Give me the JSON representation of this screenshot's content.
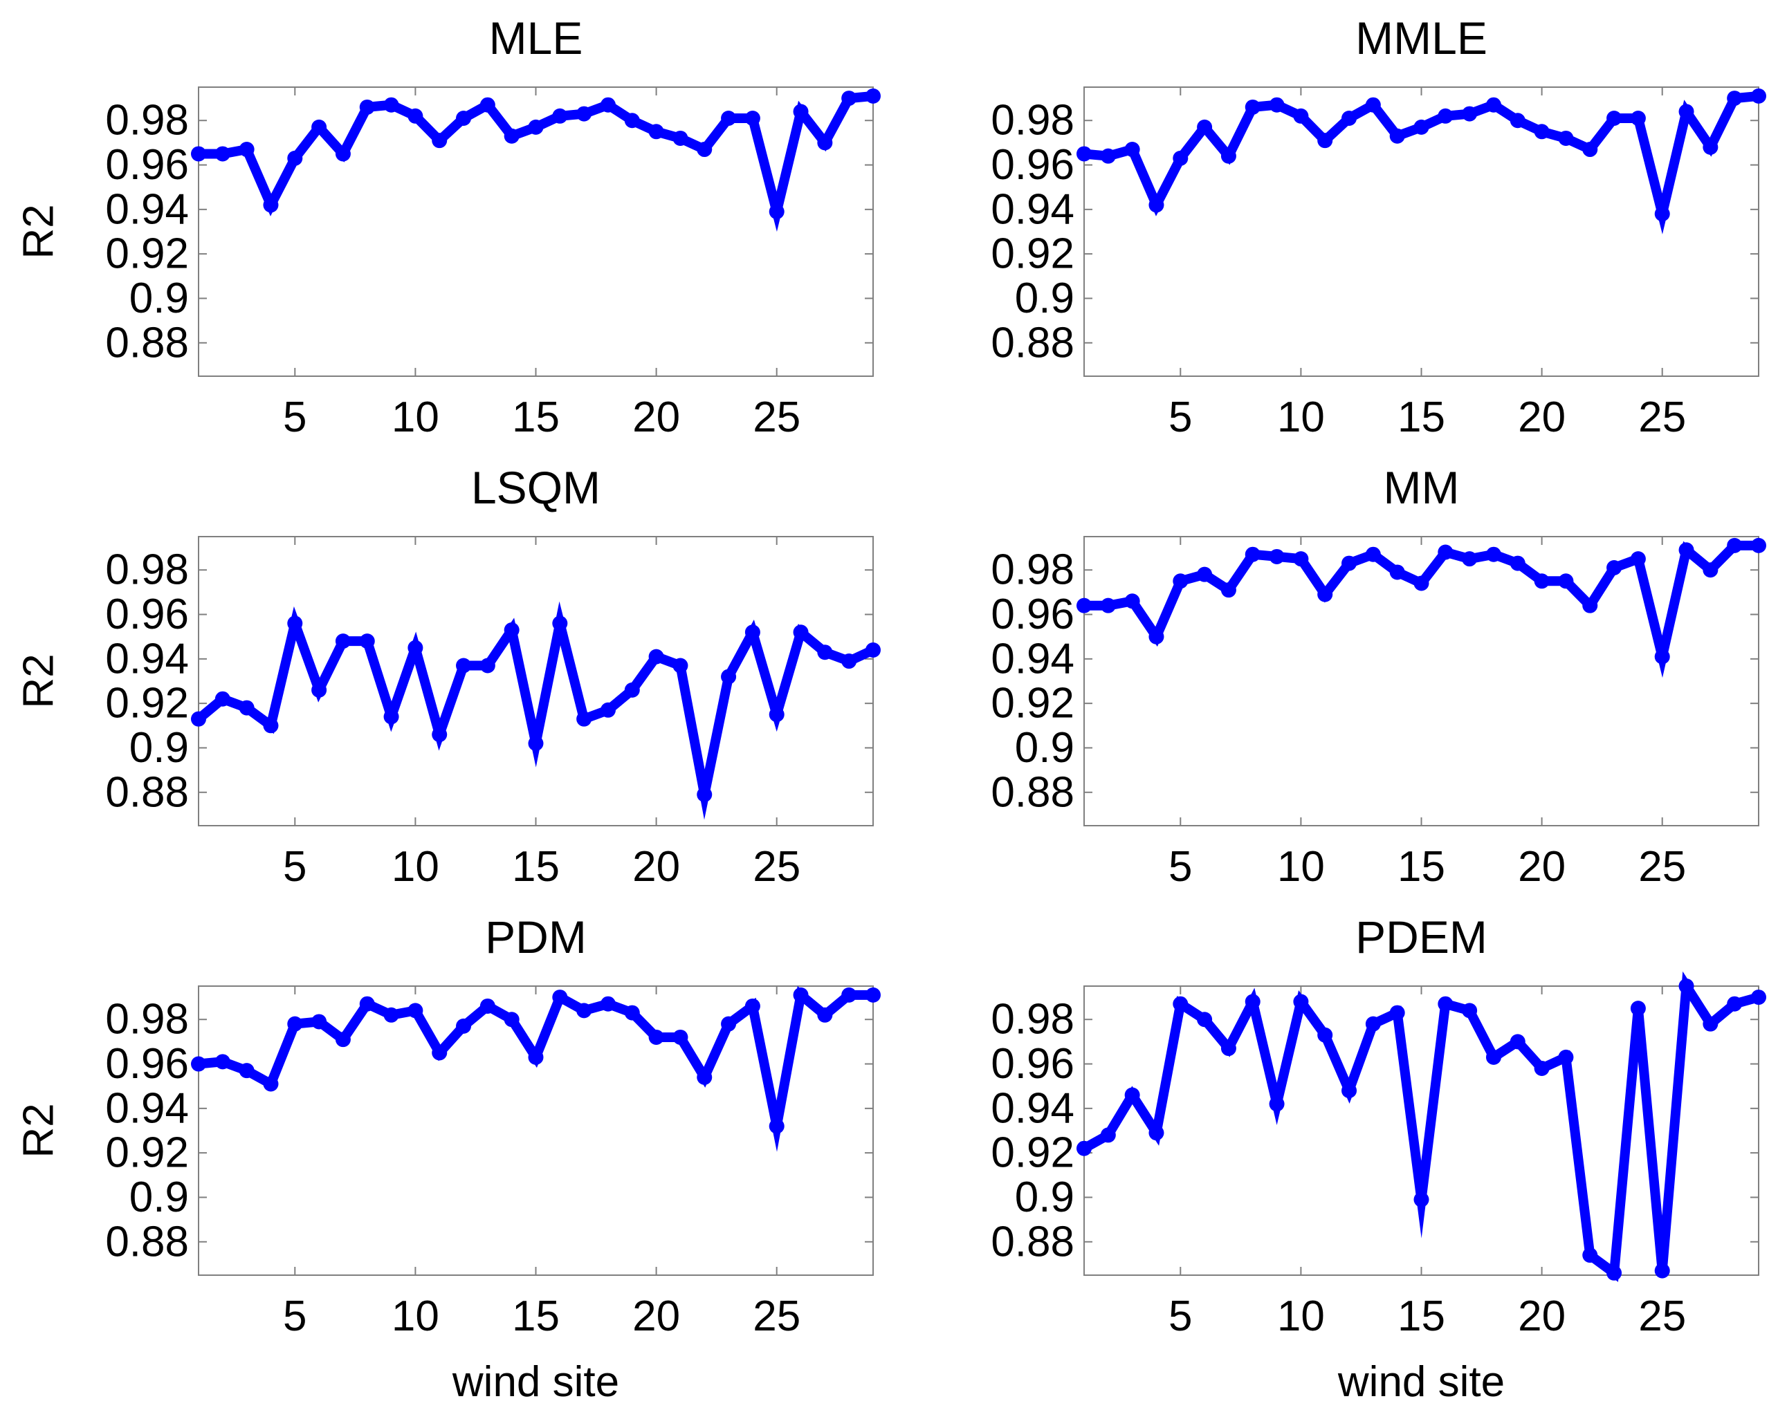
{
  "figure": {
    "xlabel": "wind site",
    "ylabel": "R2"
  },
  "chart_data": [
    {
      "type": "line",
      "title": "MLE",
      "ylabel": "R2",
      "xlabel": "",
      "xlim": [
        1,
        29
      ],
      "ylim": [
        0.865,
        0.995
      ],
      "xticks": [
        5,
        10,
        15,
        20,
        25
      ],
      "yticks": [
        0.88,
        0.9,
        0.92,
        0.94,
        0.96,
        0.98
      ],
      "ytick_labels": [
        "0.88",
        "0.9",
        "0.92",
        "0.94",
        "0.96",
        "0.98"
      ],
      "line_color": "#0000ff",
      "grid": false,
      "x": [
        1,
        2,
        3,
        4,
        5,
        6,
        7,
        8,
        9,
        10,
        11,
        12,
        13,
        14,
        15,
        16,
        17,
        18,
        19,
        20,
        21,
        22,
        23,
        24,
        25,
        26,
        27,
        28,
        29
      ],
      "values": [
        0.965,
        0.965,
        0.967,
        0.942,
        0.963,
        0.977,
        0.965,
        0.986,
        0.987,
        0.982,
        0.971,
        0.981,
        0.987,
        0.973,
        0.977,
        0.982,
        0.983,
        0.987,
        0.98,
        0.975,
        0.972,
        0.967,
        0.981,
        0.981,
        0.939,
        0.984,
        0.97,
        0.99,
        0.991
      ]
    },
    {
      "type": "line",
      "title": "MMLE",
      "ylabel": "",
      "xlabel": "",
      "xlim": [
        1,
        29
      ],
      "ylim": [
        0.865,
        0.995
      ],
      "xticks": [
        5,
        10,
        15,
        20,
        25
      ],
      "yticks": [
        0.88,
        0.9,
        0.92,
        0.94,
        0.96,
        0.98
      ],
      "ytick_labels": [
        "0.88",
        "0.9",
        "0.92",
        "0.94",
        "0.96",
        "0.98"
      ],
      "line_color": "#0000ff",
      "grid": false,
      "x": [
        1,
        2,
        3,
        4,
        5,
        6,
        7,
        8,
        9,
        10,
        11,
        12,
        13,
        14,
        15,
        16,
        17,
        18,
        19,
        20,
        21,
        22,
        23,
        24,
        25,
        26,
        27,
        28,
        29
      ],
      "values": [
        0.965,
        0.964,
        0.967,
        0.942,
        0.963,
        0.977,
        0.964,
        0.986,
        0.987,
        0.982,
        0.971,
        0.981,
        0.987,
        0.973,
        0.977,
        0.982,
        0.983,
        0.987,
        0.98,
        0.975,
        0.972,
        0.967,
        0.981,
        0.981,
        0.938,
        0.984,
        0.968,
        0.99,
        0.991
      ]
    },
    {
      "type": "line",
      "title": "LSQM",
      "ylabel": "R2",
      "xlabel": "",
      "xlim": [
        1,
        29
      ],
      "ylim": [
        0.865,
        0.995
      ],
      "xticks": [
        5,
        10,
        15,
        20,
        25
      ],
      "yticks": [
        0.88,
        0.9,
        0.92,
        0.94,
        0.96,
        0.98
      ],
      "ytick_labels": [
        "0.88",
        "0.9",
        "0.92",
        "0.94",
        "0.96",
        "0.98"
      ],
      "line_color": "#0000ff",
      "grid": false,
      "x": [
        1,
        2,
        3,
        4,
        5,
        6,
        7,
        8,
        9,
        10,
        11,
        12,
        13,
        14,
        15,
        16,
        17,
        18,
        19,
        20,
        21,
        22,
        23,
        24,
        25,
        26,
        27,
        28,
        29
      ],
      "values": [
        0.913,
        0.922,
        0.918,
        0.91,
        0.956,
        0.926,
        0.948,
        0.948,
        0.914,
        0.945,
        0.906,
        0.937,
        0.937,
        0.953,
        0.902,
        0.956,
        0.913,
        0.917,
        0.926,
        0.941,
        0.937,
        0.879,
        0.932,
        0.952,
        0.915,
        0.952,
        0.943,
        0.939,
        0.944
      ]
    },
    {
      "type": "line",
      "title": "MM",
      "ylabel": "",
      "xlabel": "",
      "xlim": [
        1,
        29
      ],
      "ylim": [
        0.865,
        0.995
      ],
      "xticks": [
        5,
        10,
        15,
        20,
        25
      ],
      "yticks": [
        0.88,
        0.9,
        0.92,
        0.94,
        0.96,
        0.98
      ],
      "ytick_labels": [
        "0.88",
        "0.9",
        "0.92",
        "0.94",
        "0.96",
        "0.98"
      ],
      "line_color": "#0000ff",
      "grid": false,
      "x": [
        1,
        2,
        3,
        4,
        5,
        6,
        7,
        8,
        9,
        10,
        11,
        12,
        13,
        14,
        15,
        16,
        17,
        18,
        19,
        20,
        21,
        22,
        23,
        24,
        25,
        26,
        27,
        28,
        29
      ],
      "values": [
        0.964,
        0.964,
        0.966,
        0.95,
        0.975,
        0.978,
        0.971,
        0.987,
        0.986,
        0.985,
        0.969,
        0.983,
        0.987,
        0.979,
        0.974,
        0.988,
        0.985,
        0.987,
        0.983,
        0.975,
        0.975,
        0.964,
        0.981,
        0.985,
        0.941,
        0.989,
        0.98,
        0.991,
        0.991
      ]
    },
    {
      "type": "line",
      "title": "PDM",
      "ylabel": "R2",
      "xlabel": "wind site",
      "xlim": [
        1,
        29
      ],
      "ylim": [
        0.865,
        0.995
      ],
      "xticks": [
        5,
        10,
        15,
        20,
        25
      ],
      "yticks": [
        0.88,
        0.9,
        0.92,
        0.94,
        0.96,
        0.98
      ],
      "ytick_labels": [
        "0.88",
        "0.9",
        "0.92",
        "0.94",
        "0.96",
        "0.98"
      ],
      "line_color": "#0000ff",
      "grid": false,
      "x": [
        1,
        2,
        3,
        4,
        5,
        6,
        7,
        8,
        9,
        10,
        11,
        12,
        13,
        14,
        15,
        16,
        17,
        18,
        19,
        20,
        21,
        22,
        23,
        24,
        25,
        26,
        27,
        28,
        29
      ],
      "values": [
        0.96,
        0.961,
        0.957,
        0.951,
        0.978,
        0.979,
        0.971,
        0.987,
        0.982,
        0.984,
        0.965,
        0.977,
        0.986,
        0.98,
        0.963,
        0.99,
        0.984,
        0.987,
        0.983,
        0.972,
        0.972,
        0.954,
        0.978,
        0.986,
        0.932,
        0.991,
        0.982,
        0.991,
        0.991
      ]
    },
    {
      "type": "line",
      "title": "PDEM",
      "ylabel": "",
      "xlabel": "wind site",
      "xlim": [
        1,
        29
      ],
      "ylim": [
        0.865,
        0.995
      ],
      "xticks": [
        5,
        10,
        15,
        20,
        25
      ],
      "yticks": [
        0.88,
        0.9,
        0.92,
        0.94,
        0.96,
        0.98
      ],
      "ytick_labels": [
        "0.88",
        "0.9",
        "0.92",
        "0.94",
        "0.96",
        "0.98"
      ],
      "line_color": "#0000ff",
      "grid": false,
      "x": [
        1,
        2,
        3,
        4,
        5,
        6,
        7,
        8,
        9,
        10,
        11,
        12,
        13,
        14,
        15,
        16,
        17,
        18,
        19,
        20,
        21,
        22,
        23,
        24,
        25,
        26,
        27,
        28,
        29
      ],
      "values": [
        0.922,
        0.928,
        0.946,
        0.929,
        0.987,
        0.98,
        0.967,
        0.988,
        0.942,
        0.988,
        0.973,
        0.948,
        0.978,
        0.983,
        0.899,
        0.987,
        0.984,
        0.963,
        0.97,
        0.958,
        0.963,
        0.874,
        0.866,
        0.985,
        0.867,
        0.995,
        0.978,
        0.987,
        0.99
      ]
    }
  ]
}
